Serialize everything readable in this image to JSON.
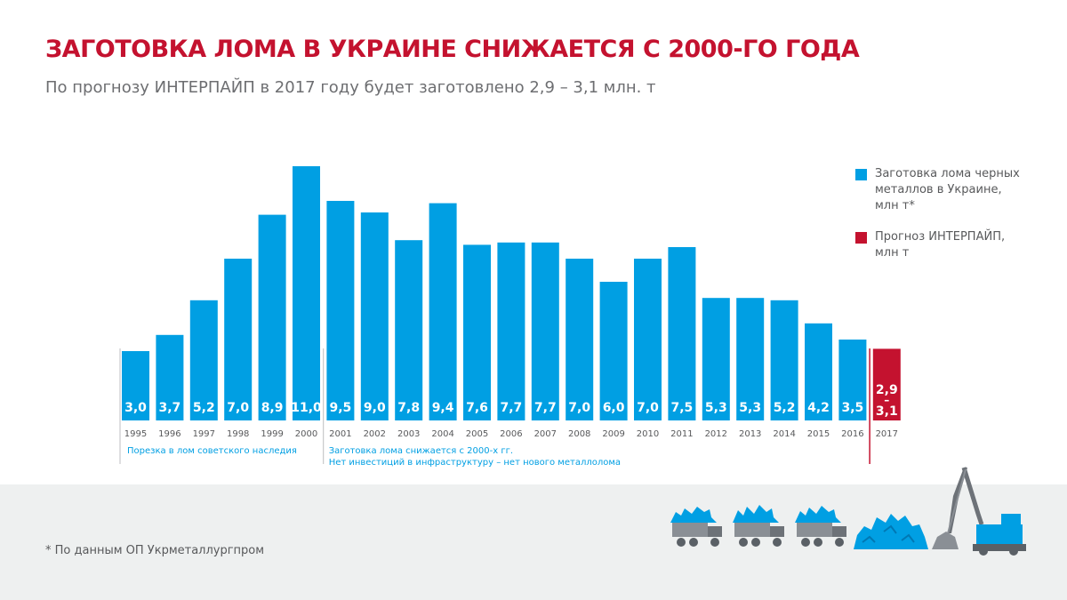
{
  "header": {
    "title": "ЗАГОТОВКА ЛОМА В УКРАИНЕ СНИЖАЕТСЯ С 2000-ГО ГОДА",
    "subtitle": "По прогнозу ИНТЕРПАЙП в 2017 году будет заготовлено 2,9 – 3,1 млн. т"
  },
  "legend": [
    {
      "label": "Заготовка лома черных металлов в Украине, млн т*",
      "color": "#009fe3"
    },
    {
      "label": "Прогноз ИНТЕРПАЙП, млн т",
      "color": "#c4122f"
    }
  ],
  "chart_data": {
    "type": "bar",
    "categories": [
      "1995",
      "1996",
      "1997",
      "1998",
      "1999",
      "2000",
      "2001",
      "2002",
      "2003",
      "2004",
      "2005",
      "2006",
      "2007",
      "2008",
      "2009",
      "2010",
      "2011",
      "2012",
      "2013",
      "2014",
      "2015",
      "2016",
      "2017"
    ],
    "series": [
      {
        "name": "Заготовка лома черных металлов в Украине, млн т*",
        "color": "#009fe3",
        "values": [
          3.0,
          3.7,
          5.2,
          7.0,
          8.9,
          11.0,
          9.5,
          9.0,
          7.8,
          9.4,
          7.6,
          7.7,
          7.7,
          7.0,
          6.0,
          7.0,
          7.5,
          5.3,
          5.3,
          5.2,
          4.2,
          3.5,
          null
        ],
        "labels": [
          "3,0",
          "3,7",
          "5,2",
          "7,0",
          "8,9",
          "11,0",
          "9,5",
          "9,0",
          "7,8",
          "9,4",
          "7,6",
          "7,7",
          "7,7",
          "7,0",
          "6,0",
          "7,0",
          "7,5",
          "5,3",
          "5,3",
          "5,2",
          "4,2",
          "3,5",
          null
        ]
      },
      {
        "name": "Прогноз ИНТЕРПАЙП, млн т",
        "color": "#c4122f",
        "range": {
          "category": "2017",
          "low": 2.9,
          "high": 3.1,
          "label_low": "2,9",
          "label_high": "3,1"
        }
      }
    ],
    "ylim": [
      0,
      11
    ],
    "periods": [
      {
        "from": "1995",
        "to": "2000",
        "lines": [
          "Порезка в лом советского наследия"
        ]
      },
      {
        "from": "2001",
        "to": "2016",
        "lines": [
          "Заготовка лома снижается с 2000-х гг.",
          "Нет инвестиций в инфраструктуру – нет нового металлолома"
        ]
      }
    ]
  },
  "footer": {
    "note": "* По данным ОП Укрметаллургпром"
  },
  "colors": {
    "accent": "#c4122f",
    "bar": "#009fe3",
    "grey": "#bcbec0",
    "footer_bg": "#eef0f0"
  },
  "icons": [
    "scrap-truck-icon",
    "scrap-truck-icon",
    "scrap-truck-icon",
    "scrap-pile-icon",
    "crane-icon"
  ]
}
